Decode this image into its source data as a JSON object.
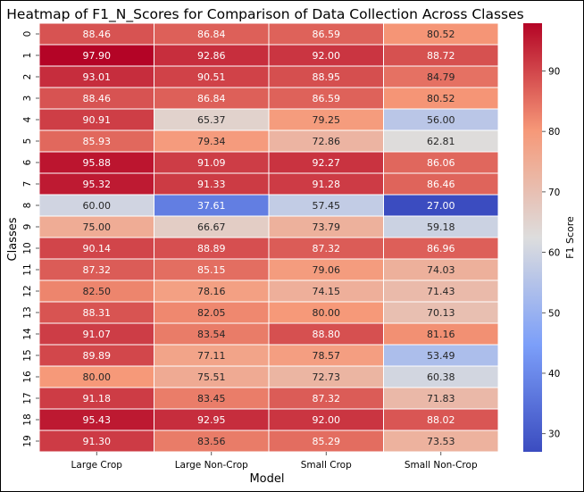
{
  "chart_data": {
    "type": "heatmap",
    "title": "Heatmap of F1_N_Scores for Comparison of Data Collection Across Classes",
    "xlabel": "Model",
    "ylabel": "Classes",
    "x_categories": [
      "Large Crop",
      "Large Non-Crop",
      "Small Crop",
      "Small Non-Crop"
    ],
    "y_categories": [
      "0",
      "1",
      "2",
      "3",
      "4",
      "5",
      "6",
      "7",
      "8",
      "9",
      "10",
      "11",
      "12",
      "13",
      "14",
      "15",
      "16",
      "17",
      "18",
      "19"
    ],
    "values": [
      [
        88.46,
        86.84,
        86.59,
        80.52
      ],
      [
        97.9,
        92.86,
        92.0,
        88.72
      ],
      [
        93.01,
        90.51,
        88.95,
        84.79
      ],
      [
        88.46,
        86.84,
        86.59,
        80.52
      ],
      [
        90.91,
        65.37,
        79.25,
        56.0
      ],
      [
        85.93,
        79.34,
        72.86,
        62.81
      ],
      [
        95.88,
        91.09,
        92.27,
        86.06
      ],
      [
        95.32,
        91.33,
        91.28,
        86.46
      ],
      [
        60.0,
        37.61,
        57.45,
        27.0
      ],
      [
        75.0,
        66.67,
        73.79,
        59.18
      ],
      [
        90.14,
        88.89,
        87.32,
        86.96
      ],
      [
        87.32,
        85.15,
        79.06,
        74.03
      ],
      [
        82.5,
        78.16,
        74.15,
        71.43
      ],
      [
        88.31,
        82.05,
        80.0,
        70.13
      ],
      [
        91.07,
        83.54,
        88.8,
        81.16
      ],
      [
        89.89,
        77.11,
        78.57,
        53.49
      ],
      [
        80.0,
        75.51,
        72.73,
        60.38
      ],
      [
        91.18,
        83.45,
        87.32,
        71.83
      ],
      [
        95.43,
        92.95,
        92.0,
        88.02
      ],
      [
        91.3,
        83.56,
        85.29,
        73.53
      ]
    ],
    "colormap": "coolwarm",
    "colorbar": {
      "label": "F1 Score",
      "vmin": 27.0,
      "vmax": 97.9,
      "ticks": [
        "30",
        "40",
        "50",
        "60",
        "70",
        "80",
        "90"
      ]
    }
  }
}
